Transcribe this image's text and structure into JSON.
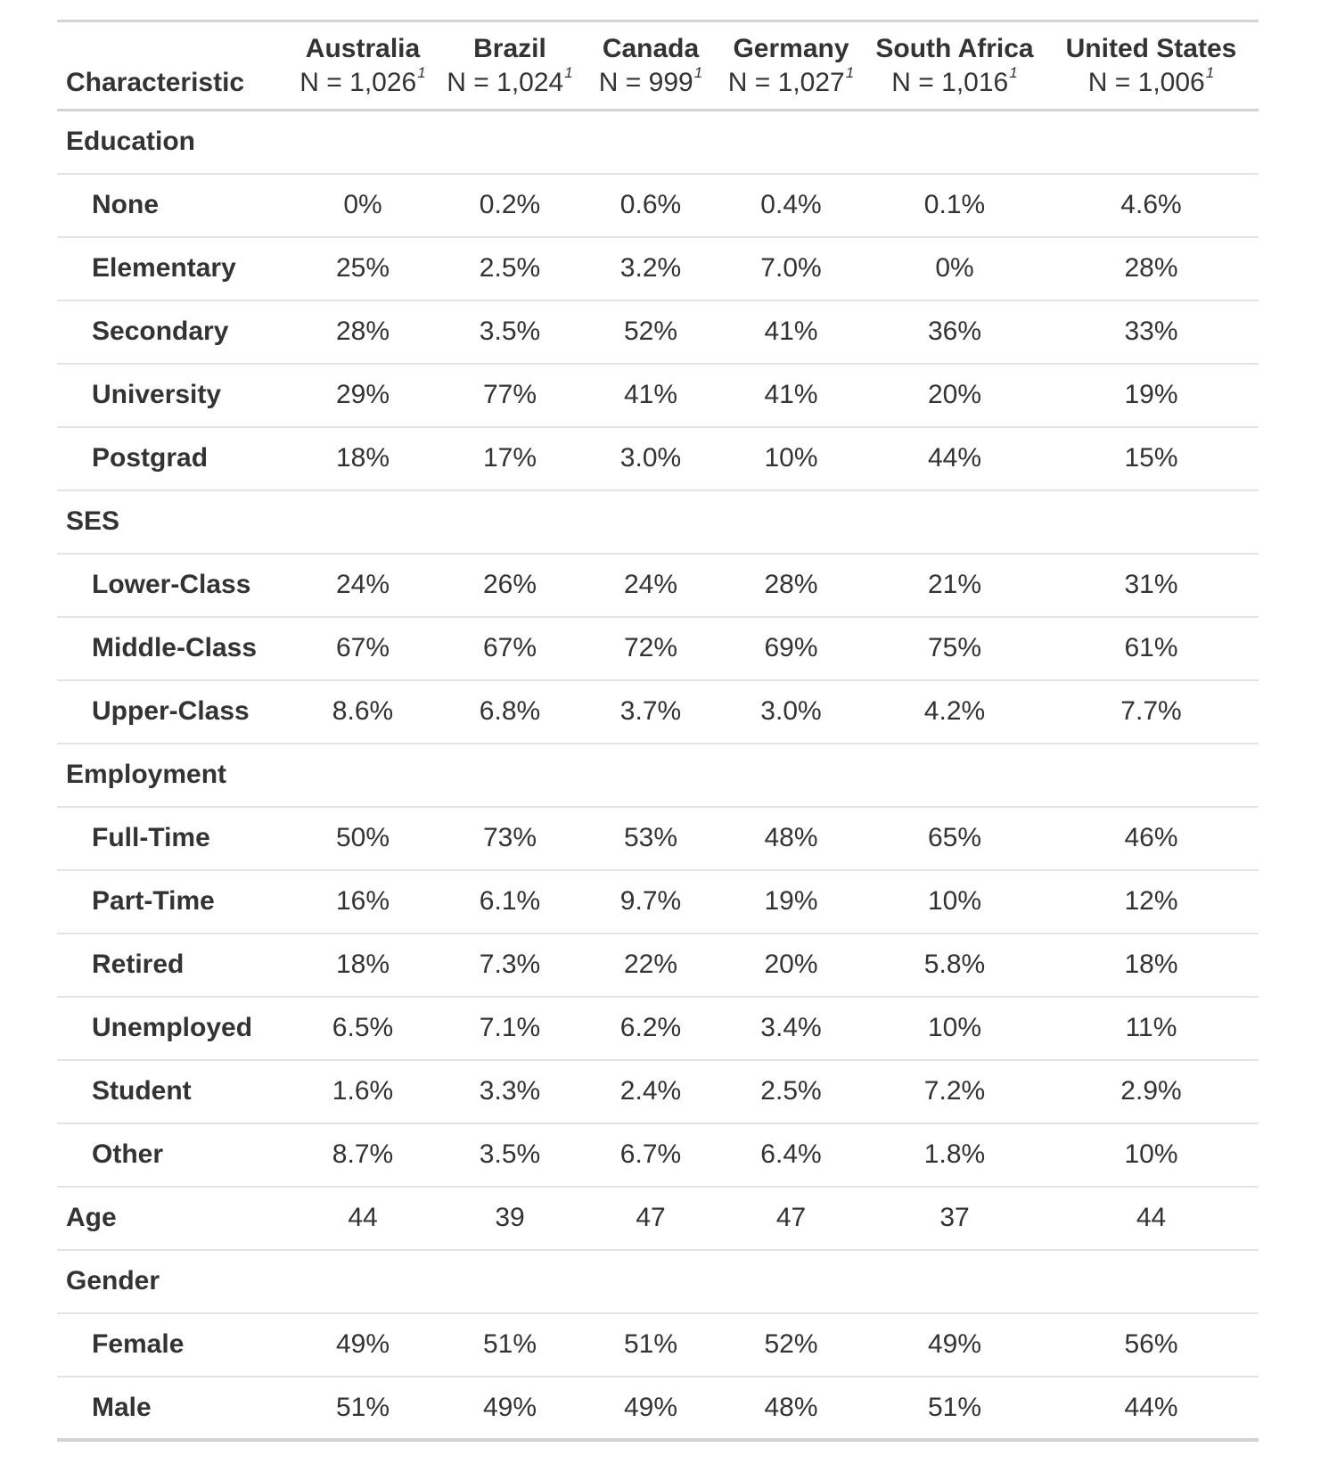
{
  "table": {
    "characteristic_header": "Characteristic",
    "footnote_marker": "1",
    "columns": [
      {
        "name": "Australia",
        "n": "N = 1,026"
      },
      {
        "name": "Brazil",
        "n": "N = 1,024"
      },
      {
        "name": "Canada",
        "n": "N = 999"
      },
      {
        "name": "Germany",
        "n": "N = 1,027"
      },
      {
        "name": "South Africa",
        "n": "N = 1,016"
      },
      {
        "name": "United States",
        "n": "N = 1,006"
      }
    ],
    "rows": [
      {
        "label": "Education",
        "type": "group",
        "values": []
      },
      {
        "label": "None",
        "type": "level",
        "values": [
          "0%",
          "0.2%",
          "0.6%",
          "0.4%",
          "0.1%",
          "4.6%"
        ]
      },
      {
        "label": "Elementary",
        "type": "level",
        "values": [
          "25%",
          "2.5%",
          "3.2%",
          "7.0%",
          "0%",
          "28%"
        ]
      },
      {
        "label": "Secondary",
        "type": "level",
        "values": [
          "28%",
          "3.5%",
          "52%",
          "41%",
          "36%",
          "33%"
        ]
      },
      {
        "label": "University",
        "type": "level",
        "values": [
          "29%",
          "77%",
          "41%",
          "41%",
          "20%",
          "19%"
        ]
      },
      {
        "label": "Postgrad",
        "type": "level",
        "values": [
          "18%",
          "17%",
          "3.0%",
          "10%",
          "44%",
          "15%"
        ]
      },
      {
        "label": "SES",
        "type": "group",
        "values": []
      },
      {
        "label": "Lower-Class",
        "type": "level",
        "values": [
          "24%",
          "26%",
          "24%",
          "28%",
          "21%",
          "31%"
        ]
      },
      {
        "label": "Middle-Class",
        "type": "level",
        "values": [
          "67%",
          "67%",
          "72%",
          "69%",
          "75%",
          "61%"
        ]
      },
      {
        "label": "Upper-Class",
        "type": "level",
        "values": [
          "8.6%",
          "6.8%",
          "3.7%",
          "3.0%",
          "4.2%",
          "7.7%"
        ]
      },
      {
        "label": "Employment",
        "type": "group",
        "values": []
      },
      {
        "label": "Full-Time",
        "type": "level",
        "values": [
          "50%",
          "73%",
          "53%",
          "48%",
          "65%",
          "46%"
        ]
      },
      {
        "label": "Part-Time",
        "type": "level",
        "values": [
          "16%",
          "6.1%",
          "9.7%",
          "19%",
          "10%",
          "12%"
        ]
      },
      {
        "label": "Retired",
        "type": "level",
        "values": [
          "18%",
          "7.3%",
          "22%",
          "20%",
          "5.8%",
          "18%"
        ]
      },
      {
        "label": "Unemployed",
        "type": "level",
        "values": [
          "6.5%",
          "7.1%",
          "6.2%",
          "3.4%",
          "10%",
          "11%"
        ]
      },
      {
        "label": "Student",
        "type": "level",
        "values": [
          "1.6%",
          "3.3%",
          "2.4%",
          "2.5%",
          "7.2%",
          "2.9%"
        ]
      },
      {
        "label": "Other",
        "type": "level",
        "values": [
          "8.7%",
          "3.5%",
          "6.7%",
          "6.4%",
          "1.8%",
          "10%"
        ]
      },
      {
        "label": "Age",
        "type": "group",
        "values": [
          "44",
          "39",
          "47",
          "47",
          "37",
          "44"
        ]
      },
      {
        "label": "Gender",
        "type": "group",
        "values": []
      },
      {
        "label": "Female",
        "type": "level",
        "values": [
          "49%",
          "51%",
          "51%",
          "52%",
          "49%",
          "56%"
        ]
      },
      {
        "label": "Male",
        "type": "level",
        "values": [
          "51%",
          "49%",
          "49%",
          "48%",
          "51%",
          "44%"
        ]
      }
    ]
  }
}
